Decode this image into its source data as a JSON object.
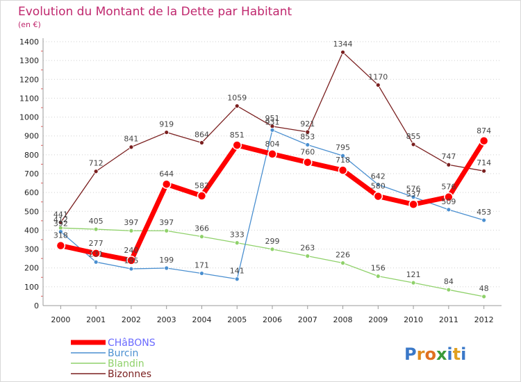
{
  "header": {
    "title": "Evolution du Montant de la Dette par Habitant",
    "subtitle": "(en €)"
  },
  "logo": {
    "text": "Proxiti",
    "letter_colors": [
      "#3a78c8",
      "#e08a1e",
      "#e07020",
      "#3a9a3a",
      "#3a78c8",
      "#e0a020",
      "#3a78c8"
    ]
  },
  "chart_data": {
    "type": "line",
    "title": "Evolution du Montant de la Dette par Habitant",
    "ylabel": "(en €)",
    "xlabel": "",
    "ylim": [
      0,
      1400
    ],
    "grid": "horizontal dotted",
    "y_ticks": [
      0,
      100,
      200,
      300,
      400,
      500,
      600,
      700,
      800,
      900,
      1000,
      1100,
      1200,
      1300,
      1400
    ],
    "categories": [
      "2000",
      "2001",
      "2002",
      "2003",
      "2004",
      "2005",
      "2006",
      "2007",
      "2008",
      "2009",
      "2010",
      "2011",
      "2012"
    ],
    "legend_position": "bottom-left",
    "series": [
      {
        "name": "Bizonnes",
        "color": "#7a1f1f",
        "values": [
          441,
          712,
          841,
          919,
          864,
          1059,
          951,
          921,
          1344,
          1170,
          855,
          747,
          714
        ]
      },
      {
        "name": "Blandin",
        "color": "#8fd16a",
        "values": [
          412,
          405,
          397,
          397,
          366,
          333,
          299,
          263,
          226,
          156,
          121,
          84,
          48
        ]
      },
      {
        "name": "Burcin",
        "color": "#4a8fd0",
        "values": [
          392,
          231,
          195,
          199,
          171,
          141,
          931,
          853,
          795,
          642,
          576,
          509,
          453
        ]
      },
      {
        "name": "CHâBONS",
        "color": "#ff0000",
        "values": [
          318,
          277,
          240,
          644,
          582,
          851,
          804,
          760,
          718,
          580,
          537,
          576,
          874
        ]
      }
    ],
    "legend_order": [
      "CHâBONS",
      "Burcin",
      "Blandin",
      "Bizonnes"
    ]
  }
}
